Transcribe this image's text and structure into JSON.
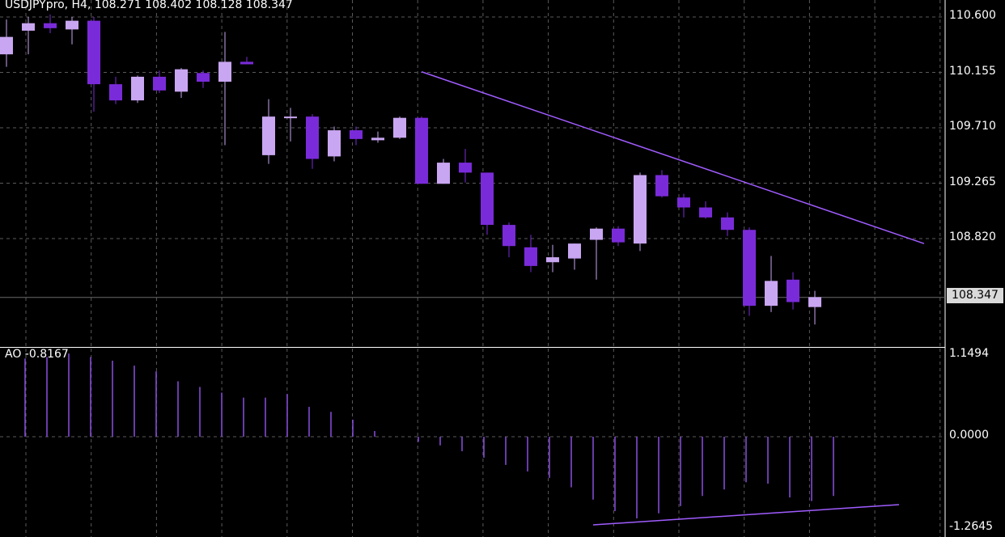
{
  "header": {
    "symbol_info": "USDJPYpro, H4, 108.271 108.402 108.128 108.347",
    "indicator_info": "AO -0.8167"
  },
  "colors": {
    "background": "#000000",
    "bull": "#c9a6f2",
    "bear": "#7a2bd9",
    "grid": "#5a5a5a",
    "trendline": "#a05cff",
    "ao_bar": "#8b4fe0",
    "current_price_line": "#6b6b6b",
    "current_price_label_bg": "#d9d9d9"
  },
  "chart_data": [
    {
      "type": "candlestick",
      "symbol": "USDJPYpro",
      "timeframe": "H4",
      "last_ohlc": {
        "open": 108.271,
        "high": 108.402,
        "low": 108.128,
        "close": 108.347
      },
      "ylim": [
        107.95,
        110.65
      ],
      "y_ticks": [
        "110.600",
        "110.155",
        "109.710",
        "109.265",
        "108.820"
      ],
      "current_price_label": "108.347",
      "candles": [
        {
          "o": 110.3,
          "h": 110.58,
          "l": 110.2,
          "c": 110.44
        },
        {
          "o": 110.49,
          "h": 110.6,
          "l": 110.3,
          "c": 110.55
        },
        {
          "o": 110.55,
          "h": 110.62,
          "l": 110.47,
          "c": 110.51
        },
        {
          "o": 110.5,
          "h": 110.6,
          "l": 110.38,
          "c": 110.57
        },
        {
          "o": 110.57,
          "h": 110.6,
          "l": 109.84,
          "c": 110.06
        },
        {
          "o": 110.06,
          "h": 110.12,
          "l": 109.9,
          "c": 109.93
        },
        {
          "o": 109.93,
          "h": 110.13,
          "l": 109.91,
          "c": 110.12
        },
        {
          "o": 110.12,
          "h": 110.17,
          "l": 109.99,
          "c": 110.01
        },
        {
          "o": 110.0,
          "h": 110.19,
          "l": 109.95,
          "c": 110.18
        },
        {
          "o": 110.15,
          "h": 110.17,
          "l": 110.03,
          "c": 110.08
        },
        {
          "o": 110.08,
          "h": 110.48,
          "l": 109.57,
          "c": 110.24
        },
        {
          "o": 110.24,
          "h": 110.28,
          "l": 110.22,
          "c": 110.22
        },
        {
          "o": 109.49,
          "h": 109.94,
          "l": 109.42,
          "c": 109.8
        },
        {
          "o": 109.8,
          "h": 109.87,
          "l": 109.6,
          "c": 109.8
        },
        {
          "o": 109.8,
          "h": 109.82,
          "l": 109.38,
          "c": 109.46
        },
        {
          "o": 109.48,
          "h": 109.72,
          "l": 109.44,
          "c": 109.69
        },
        {
          "o": 109.69,
          "h": 109.72,
          "l": 109.57,
          "c": 109.62
        },
        {
          "o": 109.61,
          "h": 109.68,
          "l": 109.59,
          "c": 109.63
        },
        {
          "o": 109.63,
          "h": 109.8,
          "l": 109.62,
          "c": 109.79
        },
        {
          "o": 109.79,
          "h": 109.8,
          "l": 109.26,
          "c": 109.26
        },
        {
          "o": 109.26,
          "h": 109.46,
          "l": 109.26,
          "c": 109.43
        },
        {
          "o": 109.43,
          "h": 109.54,
          "l": 109.27,
          "c": 109.35
        },
        {
          "o": 109.35,
          "h": 109.35,
          "l": 108.85,
          "c": 108.93
        },
        {
          "o": 108.93,
          "h": 108.95,
          "l": 108.67,
          "c": 108.76
        },
        {
          "o": 108.75,
          "h": 108.85,
          "l": 108.55,
          "c": 108.6
        },
        {
          "o": 108.63,
          "h": 108.77,
          "l": 108.55,
          "c": 108.67
        },
        {
          "o": 108.66,
          "h": 108.78,
          "l": 108.57,
          "c": 108.78
        },
        {
          "o": 108.81,
          "h": 108.91,
          "l": 108.49,
          "c": 108.9
        },
        {
          "o": 108.9,
          "h": 108.92,
          "l": 108.76,
          "c": 108.79
        },
        {
          "o": 108.78,
          "h": 109.35,
          "l": 108.72,
          "c": 109.33
        },
        {
          "o": 109.33,
          "h": 109.37,
          "l": 109.15,
          "c": 109.16
        },
        {
          "o": 109.15,
          "h": 109.18,
          "l": 108.99,
          "c": 109.07
        },
        {
          "o": 109.07,
          "h": 109.12,
          "l": 108.98,
          "c": 108.99
        },
        {
          "o": 108.99,
          "h": 109.03,
          "l": 108.84,
          "c": 108.89
        },
        {
          "o": 108.89,
          "h": 108.91,
          "l": 108.2,
          "c": 108.28
        },
        {
          "o": 108.28,
          "h": 108.68,
          "l": 108.23,
          "c": 108.48
        },
        {
          "o": 108.49,
          "h": 108.55,
          "l": 108.25,
          "c": 108.31
        },
        {
          "o": 108.27,
          "h": 108.4,
          "l": 108.13,
          "c": 108.35
        }
      ],
      "trendline": {
        "from": {
          "candle": 19,
          "price": 110.16
        },
        "to": {
          "candle": 42,
          "price": 108.78
        }
      },
      "current_price": 108.347
    },
    {
      "type": "bar",
      "indicator": "AO",
      "current_value": -0.8167,
      "ylim": [
        -1.2645,
        1.1494
      ],
      "y_ticks": [
        "1.1494",
        "0.0000",
        "-1.2645"
      ],
      "values": [
        1.1,
        1.12,
        1.17,
        1.12,
        1.07,
        1.0,
        0.92,
        0.78,
        0.7,
        0.62,
        0.55,
        0.55,
        0.6,
        0.42,
        0.35,
        0.24,
        0.08,
        0.0,
        -0.07,
        -0.12,
        -0.2,
        -0.29,
        -0.39,
        -0.48,
        -0.57,
        -0.7,
        -0.87,
        -1.03,
        -1.13,
        -1.06,
        -0.96,
        -0.82,
        -0.73,
        -0.63,
        -0.65,
        -0.84,
        -0.89,
        -0.82
      ],
      "trendline": {
        "from": {
          "bar": 26,
          "value": -1.22
        },
        "to": {
          "bar": 40,
          "value": -0.94
        }
      }
    }
  ]
}
